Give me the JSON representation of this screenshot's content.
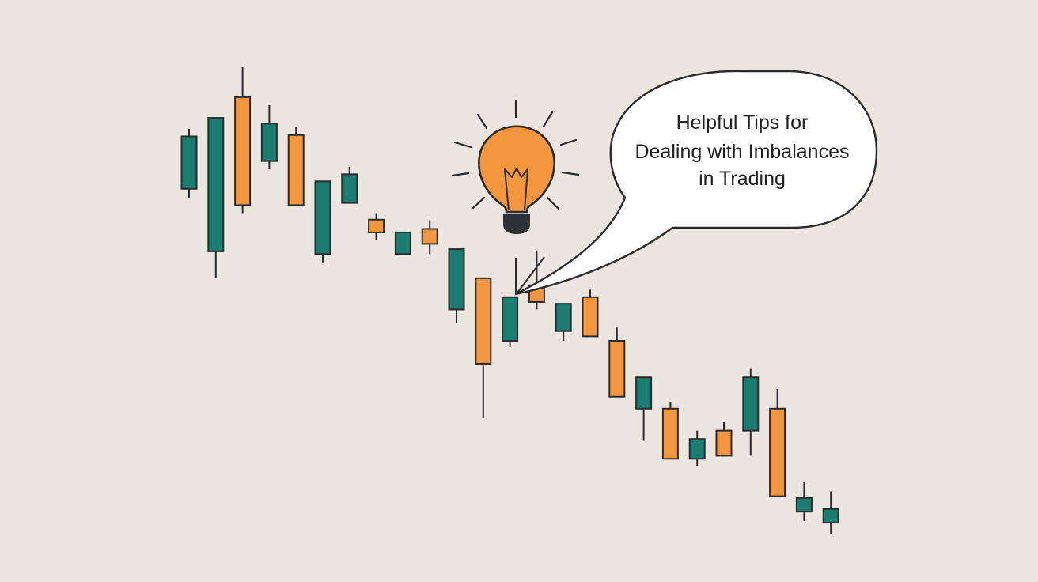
{
  "colors": {
    "background": "#ece6e1",
    "up": "#1a7d72",
    "down": "#f4963d",
    "outline": "#2b2b2b",
    "bulb": "#f4963d",
    "bulb_base": "#2e3236",
    "bubble_fill": "#ffffff"
  },
  "callout": {
    "lines": [
      "Helpful Tips for",
      "Dealing with Imbalances",
      "in Trading"
    ]
  },
  "icons": [
    "lightbulb-icon",
    "speech-bubble"
  ],
  "chart_data": {
    "type": "candlestick",
    "title": "",
    "xlabel": "",
    "ylabel": "",
    "axes_visible": false,
    "grid": false,
    "ylim": [
      0,
      100
    ],
    "candles": [
      {
        "open": 72.0,
        "close": 83.9,
        "high": 85.6,
        "low": 69.8,
        "dir": "up"
      },
      {
        "open": 57.8,
        "close": 88.1,
        "high": 88.1,
        "low": 51.7,
        "dir": "up"
      },
      {
        "open": 92.8,
        "close": 68.3,
        "high": 99.6,
        "low": 66.5,
        "dir": "down"
      },
      {
        "open": 78.3,
        "close": 86.8,
        "high": 91.0,
        "low": 76.4,
        "dir": "up"
      },
      {
        "open": 84.2,
        "close": 68.3,
        "high": 86.1,
        "low": 68.3,
        "dir": "down"
      },
      {
        "open": 57.2,
        "close": 73.7,
        "high": 73.7,
        "low": 55.3,
        "dir": "up"
      },
      {
        "open": 68.8,
        "close": 75.3,
        "high": 77.0,
        "low": 68.8,
        "dir": "up"
      },
      {
        "open": 65.0,
        "close": 62.1,
        "high": 66.5,
        "low": 60.4,
        "dir": "down"
      },
      {
        "open": 57.2,
        "close": 62.1,
        "high": 62.1,
        "low": 57.2,
        "dir": "up"
      },
      {
        "open": 62.9,
        "close": 59.5,
        "high": 64.8,
        "low": 57.2,
        "dir": "down"
      },
      {
        "open": 44.6,
        "close": 58.3,
        "high": 58.3,
        "low": 41.6,
        "dir": "up"
      },
      {
        "open": 51.7,
        "close": 32.3,
        "high": 51.7,
        "low": 20.0,
        "dir": "down"
      },
      {
        "open": 37.5,
        "close": 47.4,
        "high": 47.4,
        "low": 36.1,
        "dir": "up"
      },
      {
        "open": 50.1,
        "close": 46.3,
        "high": 58.0,
        "low": 44.6,
        "dir": "down"
      },
      {
        "open": 39.7,
        "close": 45.9,
        "high": 45.9,
        "low": 37.5,
        "dir": "up"
      },
      {
        "open": 47.4,
        "close": 38.5,
        "high": 49.1,
        "low": 38.5,
        "dir": "down"
      },
      {
        "open": 37.5,
        "close": 24.8,
        "high": 40.5,
        "low": 24.8,
        "dir": "down"
      },
      {
        "open": 22.1,
        "close": 29.2,
        "high": 29.2,
        "low": 14.8,
        "dir": "up"
      },
      {
        "open": 22.1,
        "close": 10.7,
        "high": 23.6,
        "low": 10.7,
        "dir": "down"
      },
      {
        "open": 10.7,
        "close": 15.2,
        "high": 17.1,
        "low": 9.1,
        "dir": "up"
      },
      {
        "open": 17.1,
        "close": 11.4,
        "high": 19.0,
        "low": 11.4,
        "dir": "down"
      },
      {
        "open": 17.1,
        "close": 29.2,
        "high": 31.1,
        "low": 11.4,
        "dir": "up"
      },
      {
        "open": 22.1,
        "close": 2.2,
        "high": 26.6,
        "low": 2.2,
        "dir": "down"
      },
      {
        "open": -1.3,
        "close": 1.8,
        "high": 5.6,
        "low": -3.4,
        "dir": "up"
      },
      {
        "open": -3.8,
        "close": -0.7,
        "high": 3.3,
        "low": -6.3,
        "dir": "up"
      }
    ]
  }
}
